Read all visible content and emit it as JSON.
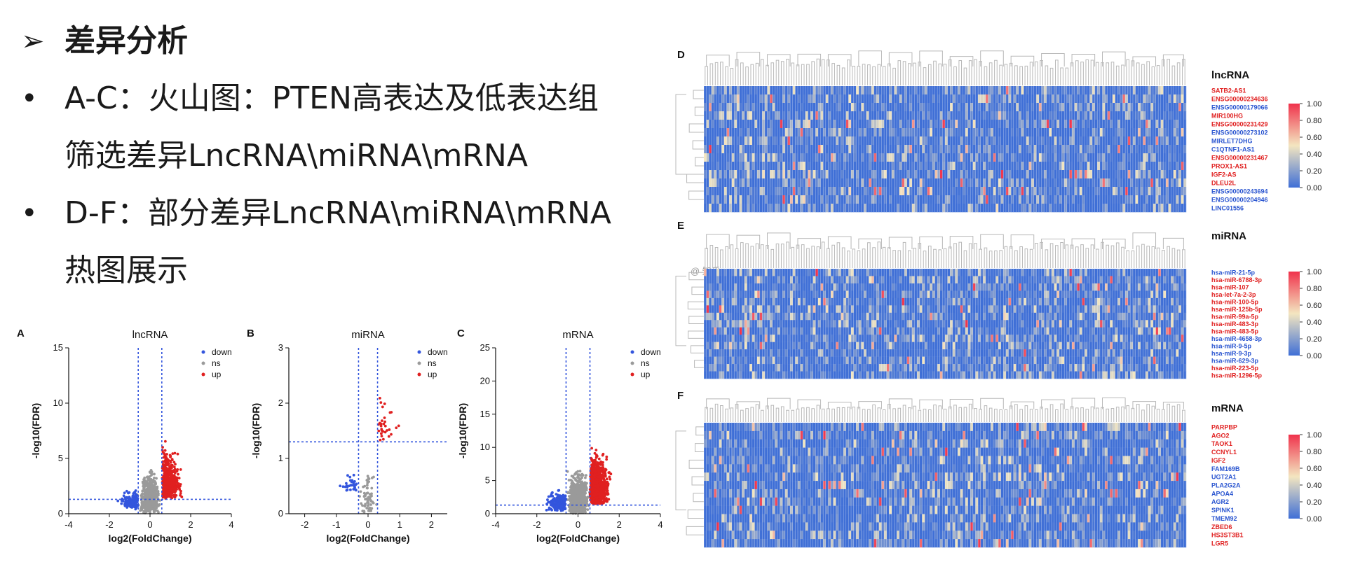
{
  "slide": {
    "bullets": [
      {
        "marker": "➢",
        "text": "差异分析",
        "bold": true
      },
      {
        "marker": "•",
        "text": "A-C：火山图：PTEN高表达及低表达组"
      },
      {
        "marker": "",
        "text": "筛选差异LncRNA\\miRNA\\mRNA"
      },
      {
        "marker": "•",
        "text": "D-F：部分差异LncRNA\\miRNA\\mRNA"
      },
      {
        "marker": "",
        "text": "热图展示"
      }
    ],
    "watermark": "@ 知乎"
  },
  "chart_data": [
    {
      "type": "scatter",
      "panel": "A",
      "title": "lncRNA",
      "xlabel": "log2(FoldChange)",
      "ylabel": "-log10(FDR)",
      "xlim": [
        -4,
        4
      ],
      "ylim": [
        0,
        15
      ],
      "xticks": [
        -4,
        -2,
        0,
        2,
        4
      ],
      "yticks": [
        0,
        5,
        10,
        15
      ],
      "thresholds": {
        "x": [
          -0.58,
          0.58
        ],
        "y": 1.3
      },
      "legend": [
        "down",
        "ns",
        "up"
      ],
      "legend_position": "top-right",
      "colors": {
        "down": "#3355dd",
        "ns": "#9a9a9a",
        "up": "#e02020"
      },
      "counts": {
        "down": 150,
        "ns": 600,
        "up": 520
      }
    },
    {
      "type": "scatter",
      "panel": "B",
      "title": "miRNA",
      "xlabel": "log2(FoldChange)",
      "ylabel": "-log10(FDR)",
      "xlim": [
        -2.5,
        2.5
      ],
      "ylim": [
        0,
        3
      ],
      "xticks": [
        -2,
        -1,
        0,
        1,
        2
      ],
      "yticks": [
        0,
        1,
        2,
        3
      ],
      "thresholds": {
        "x": [
          -0.3,
          0.3
        ],
        "y": 1.3
      },
      "legend": [
        "down",
        "ns",
        "up"
      ],
      "legend_position": "top-right",
      "colors": {
        "down": "#3355dd",
        "ns": "#9a9a9a",
        "up": "#e02020"
      },
      "counts": {
        "down": 30,
        "ns": 70,
        "up": 30
      }
    },
    {
      "type": "scatter",
      "panel": "C",
      "title": "mRNA",
      "xlabel": "log2(FoldChange)",
      "ylabel": "-log10(FDR)",
      "xlim": [
        -4,
        4
      ],
      "ylim": [
        0,
        25
      ],
      "xticks": [
        -4,
        -2,
        0,
        2,
        4
      ],
      "yticks": [
        0,
        5,
        10,
        15,
        20,
        25
      ],
      "thresholds": {
        "x": [
          -0.58,
          0.58
        ],
        "y": 1.3
      },
      "legend": [
        "down",
        "ns",
        "up"
      ],
      "legend_position": "top-right",
      "colors": {
        "down": "#3355dd",
        "ns": "#9a9a9a",
        "up": "#e02020"
      },
      "counts": {
        "down": 220,
        "ns": 900,
        "up": 1200
      }
    },
    {
      "type": "heatmap",
      "panel": "D",
      "title": "lncRNA",
      "rows": [
        {
          "label": "SATB2-AS1",
          "dir": "up"
        },
        {
          "label": "ENSG00000234636",
          "dir": "up"
        },
        {
          "label": "ENSG00000179066",
          "dir": "down"
        },
        {
          "label": "MIR100HG",
          "dir": "up"
        },
        {
          "label": "ENSG00000231429",
          "dir": "up"
        },
        {
          "label": "ENSG00000273102",
          "dir": "down"
        },
        {
          "label": "MIRLET7DHG",
          "dir": "down"
        },
        {
          "label": "C1QTNF1-AS1",
          "dir": "down"
        },
        {
          "label": "ENSG00000231467",
          "dir": "up"
        },
        {
          "label": "PROX1-AS1",
          "dir": "up"
        },
        {
          "label": "IGF2-AS",
          "dir": "up"
        },
        {
          "label": "DLEU2L",
          "dir": "up"
        },
        {
          "label": "ENSG00000243694",
          "dir": "down"
        },
        {
          "label": "ENSG00000204946",
          "dir": "down"
        },
        {
          "label": "LINC01556",
          "dir": "down"
        }
      ],
      "color_range": [
        0,
        1
      ],
      "colorbar_ticks": [
        "1.00",
        "0.80",
        "0.60",
        "0.40",
        "0.20",
        "0.00"
      ],
      "colors": {
        "low": "#3f6fd6",
        "mid": "#f3e6c0",
        "high": "#f0334c",
        "up_label": "#e02020",
        "down_label": "#2a55d0"
      }
    },
    {
      "type": "heatmap",
      "panel": "E",
      "title": "miRNA",
      "rows": [
        {
          "label": "hsa-miR-21-5p",
          "dir": "down"
        },
        {
          "label": "hsa-miR-6788-3p",
          "dir": "up"
        },
        {
          "label": "hsa-miR-107",
          "dir": "up"
        },
        {
          "label": "hsa-let-7a-2-3p",
          "dir": "up"
        },
        {
          "label": "hsa-miR-100-5p",
          "dir": "up"
        },
        {
          "label": "hsa-miR-125b-5p",
          "dir": "up"
        },
        {
          "label": "hsa-miR-99a-5p",
          "dir": "up"
        },
        {
          "label": "hsa-miR-483-3p",
          "dir": "up"
        },
        {
          "label": "hsa-miR-483-5p",
          "dir": "up"
        },
        {
          "label": "hsa-miR-4658-3p",
          "dir": "down"
        },
        {
          "label": "hsa-miR-9-5p",
          "dir": "down"
        },
        {
          "label": "hsa-miR-9-3p",
          "dir": "down"
        },
        {
          "label": "hsa-miR-629-3p",
          "dir": "down"
        },
        {
          "label": "hsa-miR-223-5p",
          "dir": "up"
        },
        {
          "label": "hsa-miR-1296-5p",
          "dir": "up"
        }
      ],
      "color_range": [
        0,
        1
      ],
      "colorbar_ticks": [
        "1.00",
        "0.80",
        "0.60",
        "0.40",
        "0.20",
        "0.00"
      ],
      "colors": {
        "low": "#3f6fd6",
        "mid": "#f3e6c0",
        "high": "#f0334c",
        "up_label": "#e02020",
        "down_label": "#2a55d0"
      }
    },
    {
      "type": "heatmap",
      "panel": "F",
      "title": "mRNA",
      "rows": [
        {
          "label": "PARPBP",
          "dir": "up"
        },
        {
          "label": "AGO2",
          "dir": "up"
        },
        {
          "label": "TAOK1",
          "dir": "up"
        },
        {
          "label": "CCNYL1",
          "dir": "up"
        },
        {
          "label": "IGF2",
          "dir": "up"
        },
        {
          "label": "FAM169B",
          "dir": "down"
        },
        {
          "label": "UGT2A1",
          "dir": "down"
        },
        {
          "label": "PLA2G2A",
          "dir": "down"
        },
        {
          "label": "APOA4",
          "dir": "down"
        },
        {
          "label": "AGR2",
          "dir": "down"
        },
        {
          "label": "SPINK1",
          "dir": "down"
        },
        {
          "label": "TMEM92",
          "dir": "down"
        },
        {
          "label": "ZBED6",
          "dir": "up"
        },
        {
          "label": "HS3ST3B1",
          "dir": "up"
        },
        {
          "label": "LGR5",
          "dir": "up"
        }
      ],
      "color_range": [
        0,
        1
      ],
      "colorbar_ticks": [
        "1.00",
        "0.80",
        "0.60",
        "0.40",
        "0.20",
        "0.00"
      ],
      "colors": {
        "low": "#3f6fd6",
        "mid": "#f3e6c0",
        "high": "#f0334c",
        "up_label": "#e02020",
        "down_label": "#2a55d0"
      }
    }
  ]
}
